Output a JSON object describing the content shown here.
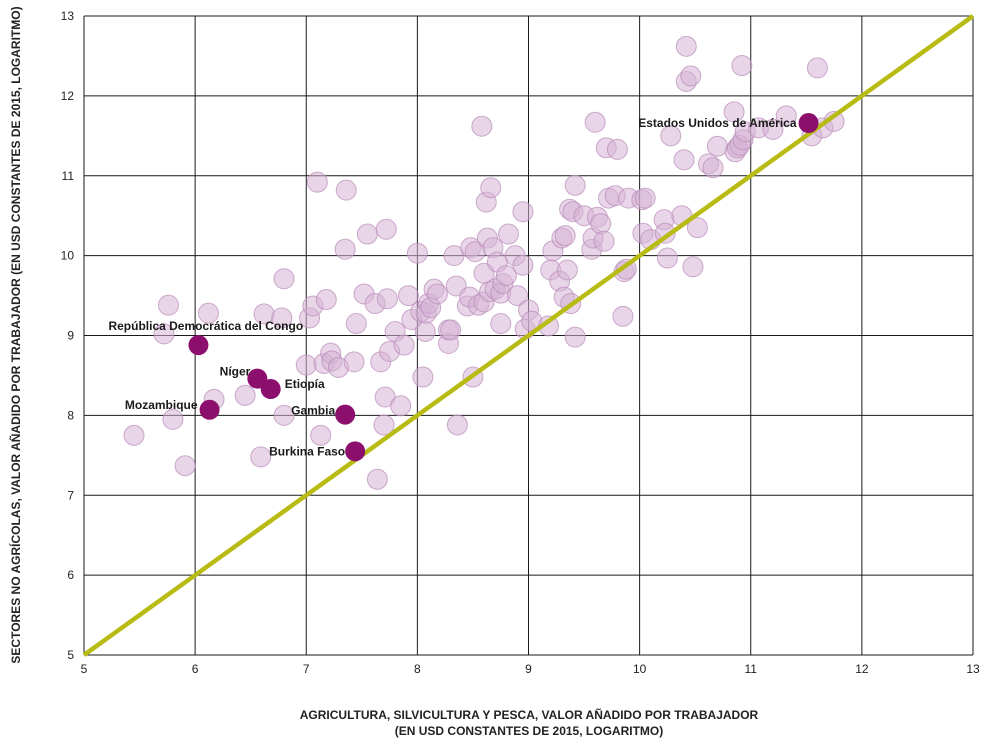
{
  "chart_data": {
    "type": "scatter",
    "title": "",
    "xlabel_line1": "AGRICULTURA, SILVICULTURA Y PESCA, VALOR AÑADIDO POR TRABAJADOR",
    "xlabel_line2": "(EN USD CONSTANTES DE 2015, LOGARITMO)",
    "ylabel": "SECTORES NO AGRÍCOLAS, VALOR AÑADIDO POR TRABAJADOR (EN USD CONSTANTES DE 2015, LOGARITMO)",
    "xlim": [
      5,
      13
    ],
    "ylim": [
      5,
      13
    ],
    "xticks": [
      "5",
      "6",
      "7",
      "8",
      "9",
      "10",
      "11",
      "12",
      "13"
    ],
    "yticks": [
      "5",
      "6",
      "7",
      "8",
      "9",
      "10",
      "11",
      "12",
      "13"
    ],
    "grid": true,
    "diagonal_line": {
      "from": [
        5,
        5
      ],
      "to": [
        13,
        13
      ],
      "color": "#b8bb14"
    },
    "colors": {
      "background_point": "#d6b3d6",
      "background_point_stroke": "#b88ab8",
      "highlight_point": "#8c0f6e",
      "grid": "#1a1a1a",
      "diagonal": "#b8bb14"
    },
    "series": [
      {
        "values": [
          [
            5.45,
            7.75
          ],
          [
            5.72,
            9.02
          ],
          [
            5.76,
            9.38
          ],
          [
            5.8,
            7.95
          ],
          [
            5.91,
            7.37
          ],
          [
            6.12,
            9.28
          ],
          [
            6.17,
            8.2
          ],
          [
            6.45,
            8.25
          ],
          [
            6.59,
            7.48
          ],
          [
            6.62,
            9.27
          ],
          [
            6.78,
            9.22
          ],
          [
            6.8,
            9.71
          ],
          [
            6.8,
            8.0
          ],
          [
            7.0,
            8.63
          ],
          [
            7.03,
            9.22
          ],
          [
            7.06,
            9.37
          ],
          [
            7.1,
            10.92
          ],
          [
            7.13,
            7.75
          ],
          [
            7.16,
            8.65
          ],
          [
            7.18,
            9.45
          ],
          [
            7.22,
            8.78
          ],
          [
            7.23,
            8.68
          ],
          [
            7.29,
            8.6
          ],
          [
            7.35,
            10.08
          ],
          [
            7.36,
            10.82
          ],
          [
            7.43,
            8.67
          ],
          [
            7.45,
            9.15
          ],
          [
            7.52,
            9.52
          ],
          [
            7.55,
            10.27
          ],
          [
            7.62,
            9.4
          ],
          [
            7.64,
            7.2
          ],
          [
            7.67,
            8.67
          ],
          [
            7.7,
            7.88
          ],
          [
            7.71,
            8.23
          ],
          [
            7.72,
            10.33
          ],
          [
            7.73,
            9.46
          ],
          [
            7.75,
            8.8
          ],
          [
            7.8,
            9.05
          ],
          [
            7.85,
            8.12
          ],
          [
            7.88,
            8.88
          ],
          [
            7.92,
            9.5
          ],
          [
            7.95,
            9.2
          ],
          [
            8.0,
            10.03
          ],
          [
            8.03,
            9.3
          ],
          [
            8.05,
            8.48
          ],
          [
            8.07,
            9.05
          ],
          [
            8.08,
            9.28
          ],
          [
            8.1,
            9.4
          ],
          [
            8.12,
            9.35
          ],
          [
            8.15,
            9.58
          ],
          [
            8.18,
            9.52
          ],
          [
            8.28,
            8.9
          ],
          [
            8.28,
            9.07
          ],
          [
            8.3,
            9.07
          ],
          [
            8.33,
            10.0
          ],
          [
            8.35,
            9.62
          ],
          [
            8.36,
            7.88
          ],
          [
            8.45,
            9.37
          ],
          [
            8.47,
            9.48
          ],
          [
            8.48,
            10.1
          ],
          [
            8.5,
            8.48
          ],
          [
            8.52,
            10.05
          ],
          [
            8.55,
            9.38
          ],
          [
            8.58,
            11.62
          ],
          [
            8.6,
            9.78
          ],
          [
            8.6,
            9.42
          ],
          [
            8.62,
            10.67
          ],
          [
            8.63,
            10.22
          ],
          [
            8.65,
            9.55
          ],
          [
            8.66,
            10.85
          ],
          [
            8.68,
            10.1
          ],
          [
            8.7,
            9.58
          ],
          [
            8.72,
            9.92
          ],
          [
            8.75,
            9.15
          ],
          [
            8.75,
            9.53
          ],
          [
            8.77,
            9.65
          ],
          [
            8.8,
            9.75
          ],
          [
            8.82,
            10.27
          ],
          [
            8.88,
            10.0
          ],
          [
            8.9,
            9.5
          ],
          [
            8.95,
            10.55
          ],
          [
            8.95,
            9.88
          ],
          [
            8.97,
            9.08
          ],
          [
            9.0,
            9.32
          ],
          [
            9.03,
            9.18
          ],
          [
            9.18,
            9.12
          ],
          [
            9.2,
            9.82
          ],
          [
            9.22,
            10.06
          ],
          [
            9.28,
            9.68
          ],
          [
            9.3,
            10.22
          ],
          [
            9.32,
            9.48
          ],
          [
            9.33,
            10.25
          ],
          [
            9.35,
            9.82
          ],
          [
            9.37,
            10.58
          ],
          [
            9.38,
            9.4
          ],
          [
            9.4,
            10.55
          ],
          [
            9.42,
            8.98
          ],
          [
            9.42,
            10.88
          ],
          [
            9.5,
            10.5
          ],
          [
            9.57,
            10.08
          ],
          [
            9.58,
            10.22
          ],
          [
            9.6,
            11.67
          ],
          [
            9.62,
            10.48
          ],
          [
            9.65,
            10.4
          ],
          [
            9.68,
            10.18
          ],
          [
            9.7,
            11.35
          ],
          [
            9.72,
            10.72
          ],
          [
            9.78,
            10.75
          ],
          [
            9.8,
            11.33
          ],
          [
            9.85,
            9.24
          ],
          [
            9.86,
            9.8
          ],
          [
            9.88,
            9.83
          ],
          [
            9.9,
            10.72
          ],
          [
            10.02,
            10.7
          ],
          [
            10.03,
            10.28
          ],
          [
            10.05,
            10.72
          ],
          [
            10.1,
            10.2
          ],
          [
            10.22,
            10.45
          ],
          [
            10.23,
            10.28
          ],
          [
            10.25,
            9.97
          ],
          [
            10.28,
            11.5
          ],
          [
            10.38,
            10.5
          ],
          [
            10.4,
            11.2
          ],
          [
            10.42,
            12.62
          ],
          [
            10.42,
            12.18
          ],
          [
            10.46,
            12.25
          ],
          [
            10.48,
            9.86
          ],
          [
            10.52,
            10.35
          ],
          [
            10.62,
            11.15
          ],
          [
            10.66,
            11.1
          ],
          [
            10.7,
            11.37
          ],
          [
            10.85,
            11.8
          ],
          [
            10.86,
            11.3
          ],
          [
            10.88,
            11.35
          ],
          [
            10.9,
            11.38
          ],
          [
            10.92,
            12.38
          ],
          [
            10.93,
            11.45
          ],
          [
            10.95,
            11.55
          ],
          [
            11.07,
            11.6
          ],
          [
            11.2,
            11.58
          ],
          [
            11.32,
            11.75
          ],
          [
            11.55,
            11.5
          ],
          [
            11.6,
            12.35
          ],
          [
            11.65,
            11.6
          ],
          [
            11.75,
            11.68
          ]
        ]
      },
      {
        "values": [
          {
            "label": "República Democrática del Congo",
            "x": 6.03,
            "y": 8.88
          },
          {
            "label": "Níger",
            "x": 6.56,
            "y": 8.46
          },
          {
            "label": "Etiopía",
            "x": 6.68,
            "y": 8.33
          },
          {
            "label": "Mozambique",
            "x": 6.13,
            "y": 8.07
          },
          {
            "label": "Gambia",
            "x": 7.35,
            "y": 8.01
          },
          {
            "label": "Burkina Faso",
            "x": 7.44,
            "y": 7.55
          },
          {
            "label": "Estados Unidos de América",
            "x": 11.52,
            "y": 11.66
          }
        ]
      }
    ]
  }
}
